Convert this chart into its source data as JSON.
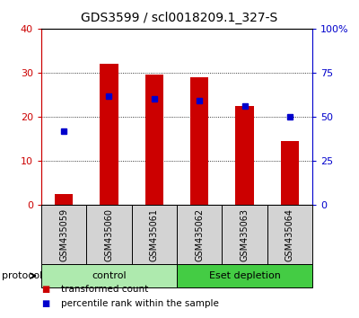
{
  "title": "GDS3599 / scl0018209.1_327-S",
  "samples": [
    "GSM435059",
    "GSM435060",
    "GSM435061",
    "GSM435062",
    "GSM435063",
    "GSM435064"
  ],
  "red_values": [
    2.5,
    32.0,
    29.5,
    29.0,
    22.5,
    14.5
  ],
  "blue_percentiles": [
    42,
    62,
    60,
    59,
    56,
    50
  ],
  "left_ylim": [
    0,
    40
  ],
  "right_ylim": [
    0,
    100
  ],
  "left_yticks": [
    0,
    10,
    20,
    30,
    40
  ],
  "right_yticks": [
    0,
    25,
    50,
    75,
    100
  ],
  "right_yticklabels": [
    "0",
    "25",
    "50",
    "75",
    "100%"
  ],
  "groups": [
    {
      "label": "control",
      "start": 0,
      "end": 3,
      "color": "#AEEAAE"
    },
    {
      "label": "Eset depletion",
      "start": 3,
      "end": 6,
      "color": "#44CC44"
    }
  ],
  "bar_color": "#CC0000",
  "dot_color": "#0000CC",
  "bar_width": 0.4,
  "protocol_label": "protocol",
  "legend_items": [
    {
      "color": "#CC0000",
      "label": "transformed count"
    },
    {
      "color": "#0000CC",
      "label": "percentile rank within the sample"
    }
  ],
  "axis_color_left": "#CC0000",
  "axis_color_right": "#0000CC",
  "title_fontsize": 10,
  "tick_fontsize": 8,
  "sample_fontsize": 7,
  "group_fontsize": 8,
  "legend_fontsize": 7.5
}
